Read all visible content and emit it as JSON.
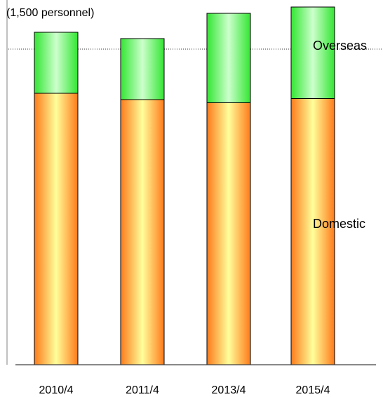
{
  "chart_data": {
    "type": "bar",
    "stacked": true,
    "categories": [
      "2010/4",
      "2011/4",
      "2013/4",
      "2015/4"
    ],
    "series": [
      {
        "name": "Domestic",
        "values": [
          1290,
          1260,
          1245,
          1265
        ],
        "colors": {
          "edge": "#ff7a1a",
          "center": "#ffff9a"
        }
      },
      {
        "name": "Overseas",
        "values": [
          290,
          290,
          425,
          435
        ],
        "colors": {
          "edge": "#33e633",
          "center": "#ccffcc"
        }
      }
    ],
    "unit_label": "(1,500 personnel)",
    "reference_line": {
      "value": 1500,
      "style": "dotted"
    },
    "ylim": [
      0,
      1700
    ],
    "axes": {
      "x_axis_line": true,
      "y_axis_line": true,
      "grid": false
    }
  }
}
